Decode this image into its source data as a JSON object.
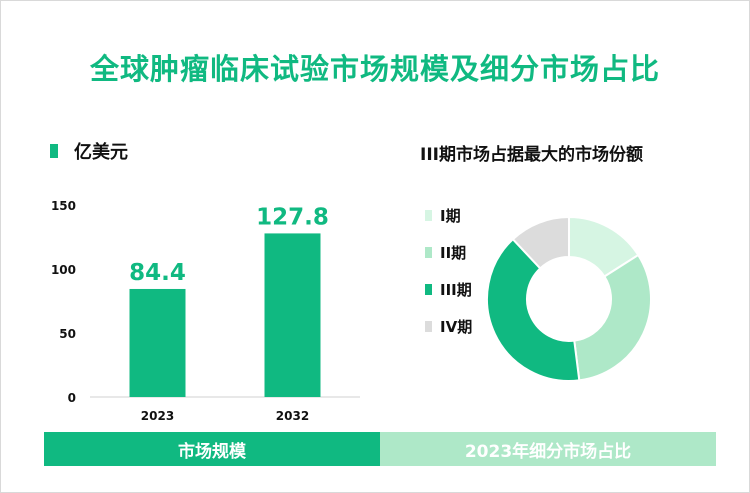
{
  "title": "全球肿瘤临床试验市场规模及细分市场占比",
  "bottom": {
    "left_label": "市场规模",
    "right_label": "2023年细分市场占比"
  },
  "colors": {
    "accent": "#10b981",
    "light": "#aee8c8",
    "lighter": "#d6f5e3",
    "gray": "#dcdcdc"
  },
  "chart_data": [
    {
      "type": "bar",
      "legend": "亿美元",
      "categories": [
        "2023",
        "2032"
      ],
      "values": [
        84.4,
        127.8
      ],
      "value_labels": [
        "84.4",
        "127.8"
      ],
      "yticks": [
        "0",
        "50",
        "100",
        "150"
      ],
      "ylim": [
        0,
        150
      ]
    },
    {
      "type": "pie",
      "title": "III期市场占据最大的市场份额",
      "labels": [
        "I期",
        "II期",
        "III期",
        "IV期"
      ],
      "values": [
        16,
        32,
        40,
        12
      ],
      "colors": [
        "#d6f5e3",
        "#aee8c8",
        "#10b981",
        "#dcdcdc"
      ]
    }
  ]
}
